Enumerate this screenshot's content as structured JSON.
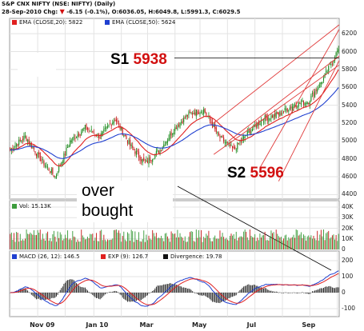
{
  "header": {
    "line1": "S&P CNX NIFTY (NSE: NIFTY) (Daily)",
    "line2_date": "28-Sep-2010 Chg:",
    "line2_chg": "-6.15 (-0.1%), O:6036.05, H:6049.8, L:5991.3, C:6029.5"
  },
  "panels": {
    "price": {
      "ema20": "EMA (CLOSE,20): 5822",
      "ema50": "EMA (CLOSE,50): 5624"
    },
    "volume": {
      "label": "Vol: 15.13K"
    },
    "macd": {
      "macd": "MACD (26, 12): 146.5",
      "exp": "EXP (9): 126.7",
      "div": "Divergence: 19.78"
    }
  },
  "annotations": {
    "s1_label": "S1",
    "s1_value": "5938",
    "s2_label": "S2",
    "s2_value": "5596",
    "over1": "over",
    "over2": "bought"
  },
  "colors": {
    "up": "#1f8a1f",
    "down": "#c81e1e",
    "ema20": "#e02020",
    "ema50": "#2040d0",
    "channel": "#e03a3a",
    "grid": "#e3e3e3",
    "vol": "#3c9c3c",
    "macd": "#2040d0",
    "signal": "#e02020"
  },
  "chart_data": [
    {
      "type": "candlestick",
      "title": "S&P CNX NIFTY (NSE: NIFTY) (Daily)",
      "x_ticks": [
        "Nov 09",
        "Jan 10",
        "Mar",
        "May",
        "Jul",
        "Sep"
      ],
      "y_ticks": [
        4400,
        4600,
        4800,
        5000,
        5200,
        5400,
        5600,
        5800,
        6000,
        6200
      ],
      "ylim": [
        4350,
        6300
      ],
      "grid": true,
      "series": [
        {
          "name": "EMA (CLOSE,20)",
          "last": 5822
        },
        {
          "name": "EMA (CLOSE,50)",
          "last": 5624
        }
      ],
      "close_anchors": [
        [
          "Sep 2009",
          4900
        ],
        [
          "Oct 2009",
          5050
        ],
        [
          "Oct 2009",
          4800
        ],
        [
          "Nov 2009",
          4600
        ],
        [
          "Nov 2009",
          5000
        ],
        [
          "Dec 2009",
          5150
        ],
        [
          "Dec 2009",
          5050
        ],
        [
          "Jan 2010",
          5250
        ],
        [
          "Jan 2010",
          4950
        ],
        [
          "Feb 2010",
          4750
        ],
        [
          "Feb 2010",
          4900
        ],
        [
          "Mar 2010",
          5150
        ],
        [
          "Apr 2010",
          5300
        ],
        [
          "Apr 2010",
          5350
        ],
        [
          "May 2010",
          5050
        ],
        [
          "May 2010",
          4900
        ],
        [
          "Jun 2010",
          5100
        ],
        [
          "Jun 2010",
          5250
        ],
        [
          "Jul 2010",
          5300
        ],
        [
          "Aug 2010",
          5400
        ],
        [
          "Aug 2010",
          5450
        ],
        [
          "Sep 2010",
          5700
        ],
        [
          "Sep 2010",
          6030
        ]
      ],
      "last": {
        "open": 6036.05,
        "high": 6049.8,
        "low": 5991.3,
        "close": 6029.5
      }
    },
    {
      "type": "bar",
      "title": "Vol: 15.13K",
      "y_ticks": [
        "0",
        "10K",
        "20K",
        "30K",
        "40K"
      ],
      "ylim": [
        0,
        40000
      ]
    },
    {
      "type": "line",
      "title": "MACD",
      "y_ticks": [
        -100,
        0,
        100,
        200
      ],
      "ylim": [
        -150,
        220
      ],
      "series": [
        {
          "name": "MACD (26, 12)",
          "last": 146.5
        },
        {
          "name": "EXP (9)",
          "last": 126.7
        },
        {
          "name": "Divergence",
          "last": 19.78
        }
      ]
    }
  ]
}
